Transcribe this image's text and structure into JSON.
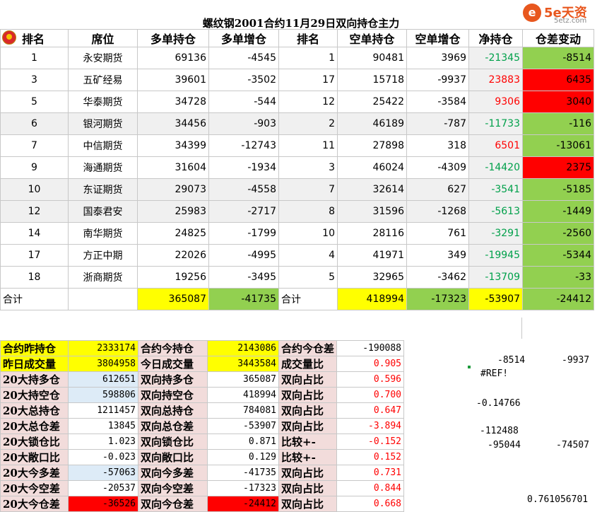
{
  "title": "螺纹钢2001合约11月29日双向持仓主力",
  "logo": {
    "glyph": "e",
    "brand": "5e天资",
    "site": "5etz.com",
    "color": "#e8571e"
  },
  "headers": [
    "排名",
    "席位",
    "多单持仓",
    "多单增仓",
    "排名",
    "空单持仓",
    "空单增仓",
    "净持仓",
    "仓差变动"
  ],
  "rows": [
    {
      "rank": "1",
      "seat": "永安期货",
      "long": "69136",
      "long_chg": "-4545",
      "srank": "1",
      "short": "90481",
      "short_chg": "3969",
      "net": "-21345",
      "diff": "-8514"
    },
    {
      "rank": "3",
      "seat": "五矿经易",
      "long": "39601",
      "long_chg": "-3502",
      "srank": "17",
      "short": "15718",
      "short_chg": "-9937",
      "net": "23883",
      "diff": "6435"
    },
    {
      "rank": "5",
      "seat": "华泰期货",
      "long": "34728",
      "long_chg": "-544",
      "srank": "12",
      "short": "25422",
      "short_chg": "-3584",
      "net": "9306",
      "diff": "3040"
    },
    {
      "rank": "6",
      "seat": "银河期货",
      "long": "34456",
      "long_chg": "-903",
      "srank": "2",
      "short": "46189",
      "short_chg": "-787",
      "net": "-11733",
      "diff": "-116"
    },
    {
      "rank": "7",
      "seat": "中信期货",
      "long": "34399",
      "long_chg": "-12743",
      "srank": "11",
      "short": "27898",
      "short_chg": "318",
      "net": "6501",
      "diff": "-13061"
    },
    {
      "rank": "9",
      "seat": "海通期货",
      "long": "31604",
      "long_chg": "-1934",
      "srank": "3",
      "short": "46024",
      "short_chg": "-4309",
      "net": "-14420",
      "diff": "2375"
    },
    {
      "rank": "10",
      "seat": "东证期货",
      "long": "29073",
      "long_chg": "-4558",
      "srank": "7",
      "short": "32614",
      "short_chg": "627",
      "net": "-3541",
      "diff": "-5185"
    },
    {
      "rank": "12",
      "seat": "国泰君安",
      "long": "25983",
      "long_chg": "-2717",
      "srank": "8",
      "short": "31596",
      "short_chg": "-1268",
      "net": "-5613",
      "diff": "-1449"
    },
    {
      "rank": "14",
      "seat": "南华期货",
      "long": "24825",
      "long_chg": "-1799",
      "srank": "10",
      "short": "28116",
      "short_chg": "761",
      "net": "-3291",
      "diff": "-2560"
    },
    {
      "rank": "17",
      "seat": "方正中期",
      "long": "22026",
      "long_chg": "-4995",
      "srank": "4",
      "short": "41971",
      "short_chg": "349",
      "net": "-19945",
      "diff": "-5344"
    },
    {
      "rank": "18",
      "seat": "浙商期货",
      "long": "19256",
      "long_chg": "-3495",
      "srank": "5",
      "short": "32965",
      "short_chg": "-3462",
      "net": "-13709",
      "diff": "-33"
    }
  ],
  "total": {
    "label": "合计",
    "long": "365087",
    "long_chg": "-41735",
    "label2": "合计",
    "short": "418994",
    "short_chg": "-17323",
    "net": "-53907",
    "diff": "-24412"
  },
  "stats": [
    {
      "l1": "合约昨持仓",
      "v1": "2333174",
      "l2": "合约今持仓",
      "v2": "2143086",
      "l3": "合约今仓差",
      "v3": "-190088"
    },
    {
      "l1": "昨日成交量",
      "v1": "3804958",
      "l2": "今日成交量",
      "v2": "3443584",
      "l3": "成交量比",
      "v3": "0.905"
    },
    {
      "l1": "20大持多仓",
      "v1": "612651",
      "l2": "双向持多仓",
      "v2": "365087",
      "l3": "双向占比",
      "v3": "0.596"
    },
    {
      "l1": "20大持空仓",
      "v1": "598806",
      "l2": "双向持空仓",
      "v2": "418994",
      "l3": "双向占比",
      "v3": "0.700"
    },
    {
      "l1": "20大总持仓",
      "v1": "1211457",
      "l2": "双向总持仓",
      "v2": "784081",
      "l3": "双向占比",
      "v3": "0.647"
    },
    {
      "l1": "20大总仓差",
      "v1": "13845",
      "l2": "双向总仓差",
      "v2": "-53907",
      "l3": "双向占比",
      "v3": "-3.894"
    },
    {
      "l1": "20大锁仓比",
      "v1": "1.023",
      "l2": "双向锁仓比",
      "v2": "0.871",
      "l3": "比较+-",
      "v3": "-0.152"
    },
    {
      "l1": "20大敞口比",
      "v1": "-0.023",
      "l2": "双向敞口比",
      "v2": "0.129",
      "l3": "比较+-",
      "v3": "0.152"
    },
    {
      "l1": "20大今多差",
      "v1": "-57063",
      "l2": "双向今多差",
      "v2": "-41735",
      "l3": "双向占比",
      "v3": "0.731"
    },
    {
      "l1": "20大今空差",
      "v1": "-20537",
      "l2": "双向今空差",
      "v2": "-17323",
      "l3": "双向占比",
      "v3": "0.844"
    },
    {
      "l1": "20大今仓差",
      "v1": "-36526",
      "l2": "双向今仓差",
      "v2": "-24412",
      "l3": "双向占比",
      "v3": "0.668"
    }
  ],
  "free_cells": {
    "a": "-8514",
    "b": "-9937",
    "ref": "#REF!",
    "c": "-0.14766",
    "d": "-112488",
    "e": "-95044",
    "f": "-74507",
    "g": "0.761056701"
  }
}
